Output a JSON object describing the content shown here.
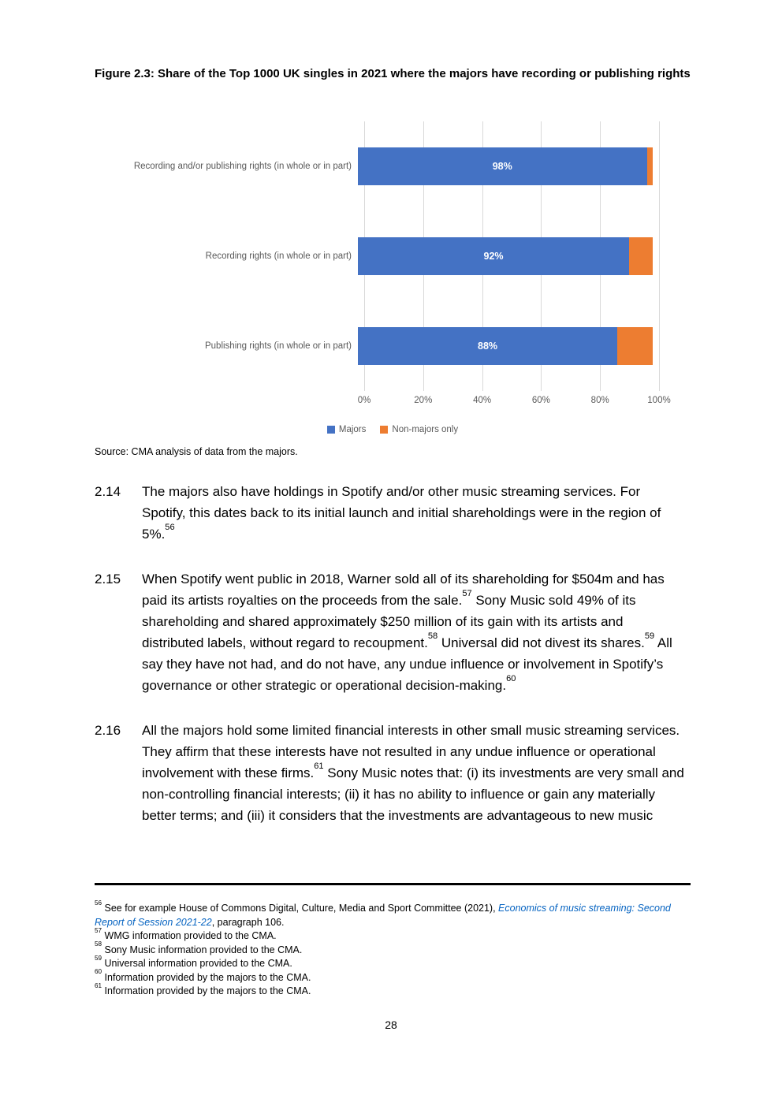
{
  "figure": {
    "title": "Figure 2.3: Share of the Top 1000 UK singles in 2021 where the majors have recording or publishing rights",
    "source": "Source: CMA analysis of data from the majors."
  },
  "chart_data": {
    "type": "bar",
    "orientation": "horizontal",
    "title": "Figure 2.3: Share of the Top 1000 UK singles in 2021 where the majors have recording or publishing rights",
    "categories": [
      "Recording and/or publishing rights (in whole or in part)",
      "Recording rights (in whole or in part)",
      "Publishing rights (in whole or in part)"
    ],
    "series": [
      {
        "name": "Majors",
        "color": "#4472C4",
        "values": [
          98,
          92,
          88
        ]
      },
      {
        "name": "Non-majors only",
        "color": "#ED7D31",
        "values": [
          2,
          8,
          12
        ]
      }
    ],
    "bar_labels": [
      "98%",
      "92%",
      "88%"
    ],
    "x_ticks": [
      "0%",
      "20%",
      "40%",
      "60%",
      "80%",
      "100%"
    ],
    "xlim": [
      0,
      100
    ],
    "grid": true,
    "legend_position": "bottom"
  },
  "paragraphs": [
    {
      "number": "2.14",
      "segments": [
        {
          "t": "text",
          "v": "The majors also have holdings in Spotify and/or other music streaming services. For Spotify, this dates back to its initial launch and initial shareholdings were in the region of 5%."
        },
        {
          "t": "sup",
          "v": "56"
        }
      ]
    },
    {
      "number": "2.15",
      "segments": [
        {
          "t": "text",
          "v": "When Spotify went public in 2018, Warner sold all of its shareholding for $504m and has paid its artists royalties on the proceeds from the sale."
        },
        {
          "t": "sup",
          "v": "57"
        },
        {
          "t": "text",
          "v": " Sony Music sold 49% of its shareholding and shared approximately $250 million of its gain with its artists and distributed labels, without regard to recoupment."
        },
        {
          "t": "sup",
          "v": "58"
        },
        {
          "t": "text",
          "v": " Universal did not divest its shares."
        },
        {
          "t": "sup",
          "v": "59"
        },
        {
          "t": "text",
          "v": " All say they have not had, and do not have, any undue influence or involvement in Spotify’s governance or other strategic or operational decision-making."
        },
        {
          "t": "sup",
          "v": "60"
        }
      ]
    },
    {
      "number": "2.16",
      "segments": [
        {
          "t": "text",
          "v": "All the majors hold some limited financial interests in other small music streaming services. They affirm that these interests have not resulted in any undue influence or operational involvement with these firms."
        },
        {
          "t": "sup",
          "v": "61"
        },
        {
          "t": "text",
          "v": " Sony Music notes that: (i) its investments are very small and non-controlling financial interests; (ii) it has no ability to influence or gain any materially better terms; and (iii) it considers that the investments are advantageous to new music"
        }
      ]
    }
  ],
  "footnotes": [
    {
      "number": "56",
      "segments": [
        {
          "t": "text",
          "v": "See for example House of Commons Digital, Culture, Media and Sport Committee (2021), "
        },
        {
          "t": "link",
          "v": "Economics of music streaming: Second Report of Session 2021-22"
        },
        {
          "t": "text",
          "v": ", paragraph 106."
        }
      ]
    },
    {
      "number": "57",
      "segments": [
        {
          "t": "text",
          "v": "WMG information provided to the CMA."
        }
      ]
    },
    {
      "number": "58",
      "segments": [
        {
          "t": "text",
          "v": "Sony Music information provided to the CMA."
        }
      ]
    },
    {
      "number": "59",
      "segments": [
        {
          "t": "text",
          "v": "Universal information provided to the CMA."
        }
      ]
    },
    {
      "number": "60",
      "segments": [
        {
          "t": "text",
          "v": "Information provided by the majors to the CMA."
        }
      ]
    },
    {
      "number": "61",
      "segments": [
        {
          "t": "text",
          "v": "Information provided by the majors to the CMA."
        }
      ]
    }
  ],
  "colors": {
    "majors": "#4472C4",
    "non_majors": "#ED7D31",
    "link": "#0563C1"
  },
  "page": {
    "number": "28"
  }
}
